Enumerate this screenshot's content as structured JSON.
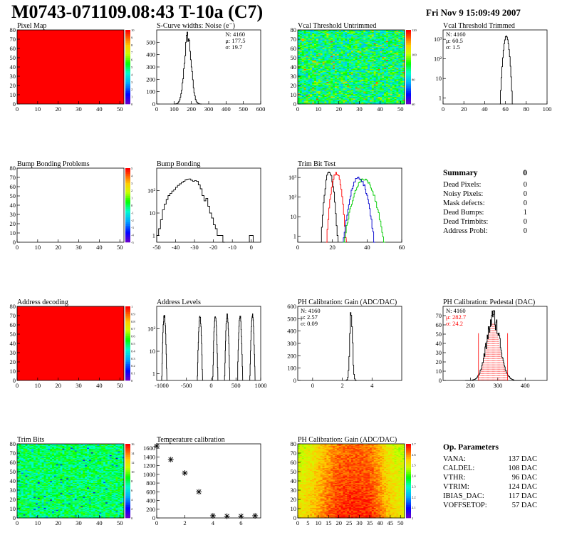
{
  "header": {
    "title": "M0743-071109.08:43 T-10a (C7)",
    "date": "Fri Nov  9 15:09:49 2007"
  },
  "colors": {
    "red": "#ff0000",
    "green": "#00cc00",
    "blue": "#0000cc",
    "black": "#000000"
  },
  "summary": {
    "title": "Summary",
    "total": "0",
    "rows": [
      {
        "label": "Dead Pixels:",
        "value": "0"
      },
      {
        "label": "Noisy Pixels:",
        "value": "0"
      },
      {
        "label": "Mask defects:",
        "value": "0"
      },
      {
        "label": "Dead Bumps:",
        "value": "1"
      },
      {
        "label": "Dead Trimbits:",
        "value": "0"
      },
      {
        "label": "Address Probl:",
        "value": "0"
      }
    ]
  },
  "op_params": {
    "title": "Op. Parameters",
    "rows": [
      {
        "label": "VANA:",
        "value": "137 DAC"
      },
      {
        "label": "CALDEL:",
        "value": "108 DAC"
      },
      {
        "label": "VTHR:",
        "value": "96 DAC"
      },
      {
        "label": "VTRIM:",
        "value": "124 DAC"
      },
      {
        "label": "IBIAS_DAC:",
        "value": "117 DAC"
      },
      {
        "label": "VOFFSETOP:",
        "value": "57 DAC"
      }
    ]
  },
  "chart_data": [
    {
      "id": "pixel-map",
      "type": "heatmap",
      "title": "Pixel Map",
      "xlim": [
        0,
        52
      ],
      "ylim": [
        0,
        80
      ],
      "xticks": [
        "0",
        "10",
        "20",
        "30",
        "40",
        "50"
      ],
      "yticks": [
        "0",
        "10",
        "20",
        "30",
        "40",
        "50",
        "60",
        "70",
        "80"
      ],
      "fill": "uniform",
      "fill_color": "#ff0000",
      "zticks": [
        "0",
        "1",
        "2",
        "3",
        "4",
        "5",
        "6",
        "7",
        "8",
        "9",
        "10"
      ]
    },
    {
      "id": "scurve",
      "type": "line",
      "title": "S-Curve widths: Noise (e⁻)",
      "xlim": [
        0,
        600
      ],
      "ylim": [
        0,
        600
      ],
      "xticks": [
        "0",
        "100",
        "200",
        "300",
        "400",
        "500",
        "600"
      ],
      "yticks": [
        "0",
        "100",
        "200",
        "300",
        "400",
        "500"
      ],
      "stats": [
        "N: 4160",
        "μ: 177.5",
        "σ: 19.7"
      ],
      "peak": [
        177.5,
        550
      ],
      "sigma": 19.7
    },
    {
      "id": "vcal-untrimmed",
      "type": "heatmap",
      "title": "Vcal Threshold Untrimmed",
      "xlim": [
        0,
        52
      ],
      "ylim": [
        0,
        80
      ],
      "xticks": [
        "0",
        "10",
        "20",
        "30",
        "40",
        "50"
      ],
      "yticks": [
        "0",
        "10",
        "20",
        "30",
        "40",
        "50",
        "60",
        "70",
        "80"
      ],
      "fill": "noise",
      "zticks": [
        "60",
        "80",
        "100",
        "120"
      ]
    },
    {
      "id": "vcal-trimmed",
      "type": "line",
      "title": "Vcal Threshold Trimmed",
      "log": true,
      "xlim": [
        0,
        100
      ],
      "ylim": [
        0.5,
        3000
      ],
      "xticks": [
        "0",
        "20",
        "40",
        "60",
        "80",
        "100"
      ],
      "yticks": [
        [
          "1",
          1
        ],
        [
          "10",
          10
        ],
        [
          "10²",
          100
        ],
        [
          "10³",
          1000
        ]
      ],
      "stats": [
        "N: 4160",
        "μ: 60.5",
        "σ:  1.5"
      ],
      "peak": [
        60.5,
        1400
      ],
      "sigma": 1.5
    },
    {
      "id": "bump-problems",
      "type": "heatmap",
      "title": "Bump Bonding Problems",
      "xlim": [
        0,
        52
      ],
      "ylim": [
        0,
        80
      ],
      "xticks": [
        "0",
        "10",
        "20",
        "30",
        "40",
        "50"
      ],
      "yticks": [
        "0",
        "10",
        "20",
        "30",
        "40",
        "50",
        "60",
        "70",
        "80"
      ],
      "fill": "empty",
      "zticks": [
        "-5",
        "-4",
        "-3",
        "-2",
        "-1",
        "0",
        "1",
        "2",
        "3",
        "4",
        "5"
      ]
    },
    {
      "id": "bump-bonding",
      "type": "line",
      "title": "Bump Bonding",
      "log": true,
      "xlim": [
        -50,
        5
      ],
      "ylim": [
        0.5,
        1000
      ],
      "xticks": [
        "-50",
        "-40",
        "-30",
        "-20",
        "-10",
        "0"
      ],
      "yticks": [
        [
          "1",
          1
        ],
        [
          "10",
          10
        ],
        [
          "10²",
          100
        ]
      ],
      "x": [
        -50,
        -49,
        -48,
        -47,
        -46,
        -45,
        -44,
        -43,
        -42,
        -41,
        -40,
        -39,
        -38,
        -37,
        -36,
        -35,
        -34,
        -33,
        -32,
        -31,
        -30,
        -29,
        -28,
        -27,
        -26,
        -25,
        -24,
        -23,
        -22,
        -21,
        -20,
        -19,
        -18,
        -17,
        -16,
        -15,
        -1,
        0
      ],
      "values": [
        1,
        2,
        5,
        14,
        25,
        40,
        60,
        75,
        95,
        110,
        140,
        170,
        200,
        230,
        260,
        300,
        320,
        330,
        290,
        260,
        280,
        260,
        180,
        120,
        60,
        35,
        45,
        20,
        10,
        6,
        3,
        2,
        1,
        1,
        1,
        0.5,
        1,
        1
      ]
    },
    {
      "id": "trim-bit-test",
      "type": "line",
      "title": "Trim Bit Test",
      "log": true,
      "xlim": [
        0,
        60
      ],
      "ylim": [
        0.5,
        3000
      ],
      "xticks": [
        "0",
        "20",
        "40",
        "60"
      ],
      "yticks": [
        [
          "1",
          1
        ],
        [
          "10",
          10
        ],
        [
          "10²",
          100
        ],
        [
          "10³",
          1000
        ]
      ],
      "series": [
        {
          "color": "#000000",
          "mean": 18,
          "sigma": 1.2,
          "peak": 2000
        },
        {
          "color": "#ff0000",
          "mean": 22,
          "sigma": 1.4,
          "peak": 1800
        },
        {
          "color": "#0000cc",
          "mean": 35,
          "sigma": 2.3,
          "peak": 1000
        },
        {
          "color": "#00cc00",
          "mean": 38,
          "sigma": 3.0,
          "peak": 800
        }
      ]
    },
    {
      "id": "address-decoding",
      "type": "heatmap",
      "title": "Address decoding",
      "xlim": [
        0,
        52
      ],
      "ylim": [
        0,
        80
      ],
      "xticks": [
        "0",
        "10",
        "20",
        "30",
        "40",
        "50"
      ],
      "yticks": [
        "0",
        "10",
        "20",
        "30",
        "40",
        "50",
        "60",
        "70",
        "80"
      ],
      "fill": "uniform",
      "fill_color": "#ff0000",
      "zticks": [
        "0",
        "0.1",
        "0.2",
        "0.3",
        "0.4",
        "0.5",
        "0.6",
        "0.7",
        "0.8",
        "0.9",
        "1"
      ]
    },
    {
      "id": "address-levels",
      "type": "line",
      "title": "Address Levels",
      "log": true,
      "xlim": [
        -1100,
        1000
      ],
      "ylim": [
        0.5,
        1000
      ],
      "xticks": [
        "-1000",
        "-500",
        "0",
        "500",
        "1000"
      ],
      "yticks": [
        [
          "1",
          1
        ],
        [
          "10",
          10
        ],
        [
          "10²",
          100
        ]
      ],
      "peaks": [
        -950,
        -230,
        80,
        320,
        580,
        830
      ],
      "peak_height": 400
    },
    {
      "id": "ph-gain",
      "type": "line",
      "title": "PH Calibration: Gain (ADC/DAC)",
      "xlim": [
        -1,
        6
      ],
      "ylim": [
        0,
        600
      ],
      "xticks": [
        "0",
        "2",
        "4"
      ],
      "yticks": [
        "0",
        "100",
        "200",
        "300",
        "400",
        "500",
        "600"
      ],
      "stats": [
        "N: 4160",
        "μ: 2.57",
        "σ: 0.09"
      ],
      "peak": [
        2.57,
        560
      ],
      "sigma": 0.09
    },
    {
      "id": "ph-pedestal",
      "type": "line",
      "title": "PH Calibration: Pedestal (DAC)",
      "xlim": [
        100,
        480
      ],
      "ylim": [
        0,
        80
      ],
      "xticks": [
        "200",
        "300",
        "400"
      ],
      "yticks": [
        "0",
        "10",
        "20",
        "30",
        "40",
        "50",
        "60",
        "70"
      ],
      "stats": [
        "N: 4160",
        "μ: 282.7",
        "σ: 24.2"
      ],
      "peak": [
        282.7,
        68
      ],
      "sigma": 24.2
    },
    {
      "id": "trim-bits",
      "type": "heatmap",
      "title": "Trim Bits",
      "xlim": [
        0,
        52
      ],
      "ylim": [
        0,
        80
      ],
      "xticks": [
        "0",
        "10",
        "20",
        "30",
        "40",
        "50"
      ],
      "yticks": [
        "0",
        "10",
        "20",
        "30",
        "40",
        "50",
        "60",
        "70",
        "80"
      ],
      "fill": "trim",
      "zticks": [
        "0",
        "2",
        "4",
        "6",
        "8",
        "10",
        "12",
        "14",
        "16"
      ]
    },
    {
      "id": "temperature",
      "type": "scatter",
      "title": "Temperature calibration",
      "xlim": [
        0,
        7.4
      ],
      "ylim": [
        0,
        1700
      ],
      "xticks": [
        "0",
        "2",
        "4",
        "6"
      ],
      "yticks": [
        "0",
        "200",
        "400",
        "600",
        "800",
        "1000",
        "1200",
        "1400",
        "1600"
      ],
      "x": [
        0,
        1,
        2,
        3,
        4,
        5,
        6,
        7
      ],
      "values": [
        1650,
        1340,
        1030,
        600,
        50,
        40,
        40,
        50
      ]
    },
    {
      "id": "ph-gain-map",
      "type": "heatmap",
      "title": "PH Calibration: Gain (ADC/DAC)",
      "xlim": [
        0,
        52
      ],
      "ylim": [
        0,
        80
      ],
      "xticks": [
        "0",
        "5",
        "10",
        "15",
        "20",
        "25",
        "30",
        "35",
        "40",
        "45",
        "50"
      ],
      "yticks": [
        "0",
        "10",
        "20",
        "30",
        "40",
        "50",
        "60",
        "70",
        "80"
      ],
      "fill": "gain",
      "zticks": [
        "2",
        "2.1",
        "2.2",
        "2.3",
        "2.4",
        "2.5",
        "2.6",
        "2.7"
      ]
    }
  ]
}
